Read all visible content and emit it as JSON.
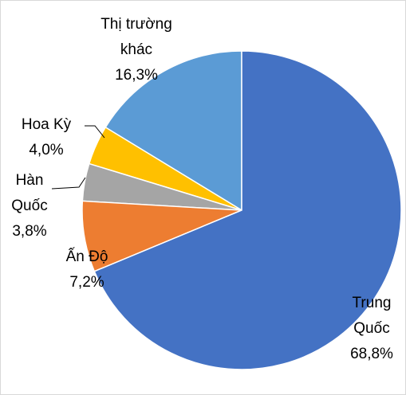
{
  "chart_data": {
    "type": "pie",
    "categories": [
      "Trung Quốc",
      "Ấn Độ",
      "Hàn Quốc",
      "Hoa Kỳ",
      "Thị trường khác"
    ],
    "values": [
      68.8,
      7.2,
      3.8,
      4.0,
      16.3
    ],
    "value_labels": [
      "68,8%",
      "7,2%",
      "3,8%",
      "4,0%",
      "16,3%"
    ],
    "colors": [
      "#4472c4",
      "#ed7d31",
      "#a5a5a5",
      "#ffc000",
      "#5b9bd5"
    ]
  }
}
